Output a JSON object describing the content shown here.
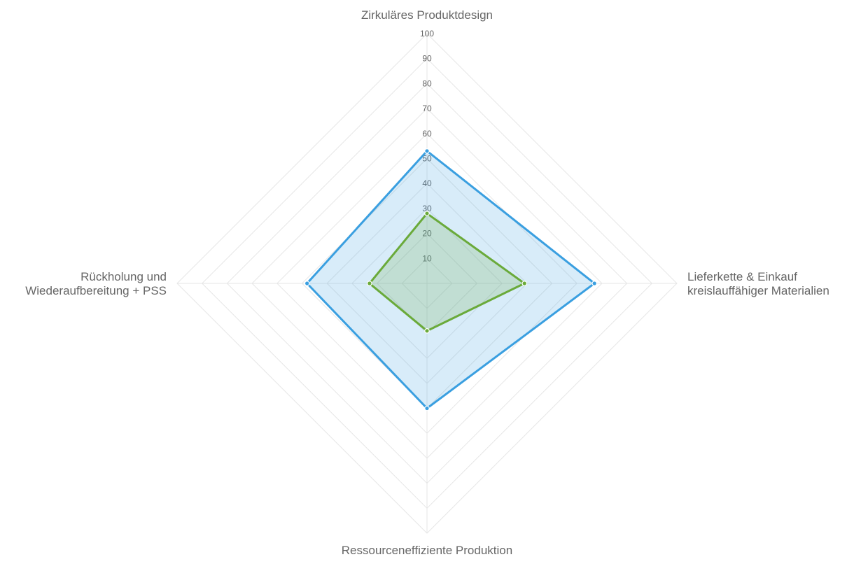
{
  "chart_data": {
    "type": "radar",
    "axes": [
      [
        "Zirkuläres Produktdesign"
      ],
      [
        "Lieferkette & Einkauf",
        "kreislauffähiger Materialien"
      ],
      [
        "Ressourceneffiziente Produktion"
      ],
      [
        "Rückholung und",
        "Wiederaufbereitung + PSS"
      ]
    ],
    "rlim": [
      0,
      100
    ],
    "ticks": [
      10,
      20,
      30,
      40,
      50,
      60,
      70,
      80,
      90,
      100
    ],
    "grid": true,
    "legend": "none",
    "series": [
      {
        "values": [
          53,
          67,
          50,
          48
        ],
        "color": "#3a9fe0",
        "fill": "rgba(58,159,224,0.2)"
      },
      {
        "values": [
          28,
          39,
          19,
          23
        ],
        "color": "#6aaa3a",
        "fill": "rgba(106,170,58,0.2)"
      }
    ]
  }
}
